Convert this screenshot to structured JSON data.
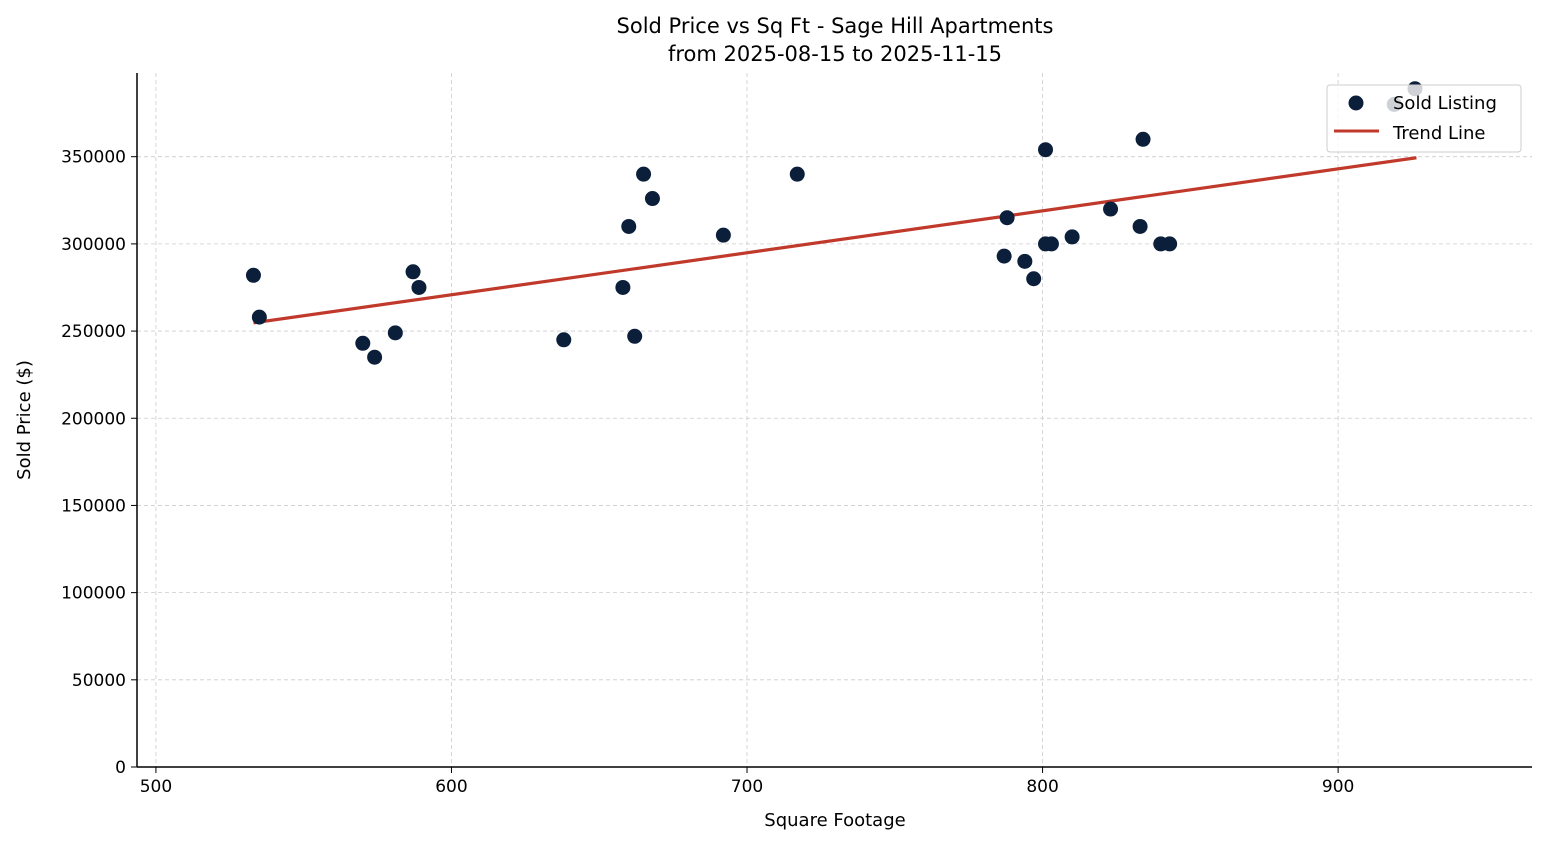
{
  "chart_data": {
    "type": "scatter",
    "title": "Sold Price vs Sq Ft - Sage Hill Apartments",
    "subtitle": "from 2025-08-15 to 2025-11-15",
    "xlabel": "Square Footage",
    "ylabel": "Sold Price ($)",
    "xlim": [
      493.6,
      965.6
    ],
    "ylim": [
      0,
      398000
    ],
    "xticks": [
      500,
      600,
      700,
      800,
      900
    ],
    "yticks": [
      0,
      50000,
      100000,
      150000,
      200000,
      250000,
      300000,
      350000
    ],
    "grid": true,
    "legend_position": "top-right",
    "series": [
      {
        "name": "Sold Listing",
        "type": "scatter",
        "color": "#0b1f3a",
        "x": [
          533,
          535,
          570,
          574,
          581,
          587,
          589,
          638,
          658,
          660,
          662,
          665,
          668,
          692,
          717,
          787,
          788,
          794,
          797,
          801,
          801,
          803,
          810,
          823,
          833,
          834,
          840,
          843,
          919,
          926
        ],
        "y": [
          282000,
          258000,
          243000,
          235000,
          249000,
          284000,
          275000,
          245000,
          275000,
          310000,
          247000,
          340000,
          326000,
          305000,
          340000,
          293000,
          315000,
          290000,
          280000,
          354000,
          300000,
          300000,
          304000,
          320000,
          310000,
          360000,
          300000,
          300000,
          380000,
          389000
        ]
      },
      {
        "name": "Trend Line",
        "type": "line",
        "color": "#c0392b",
        "x": [
          533,
          926.5
        ],
        "y": [
          254700,
          349400
        ]
      }
    ]
  }
}
